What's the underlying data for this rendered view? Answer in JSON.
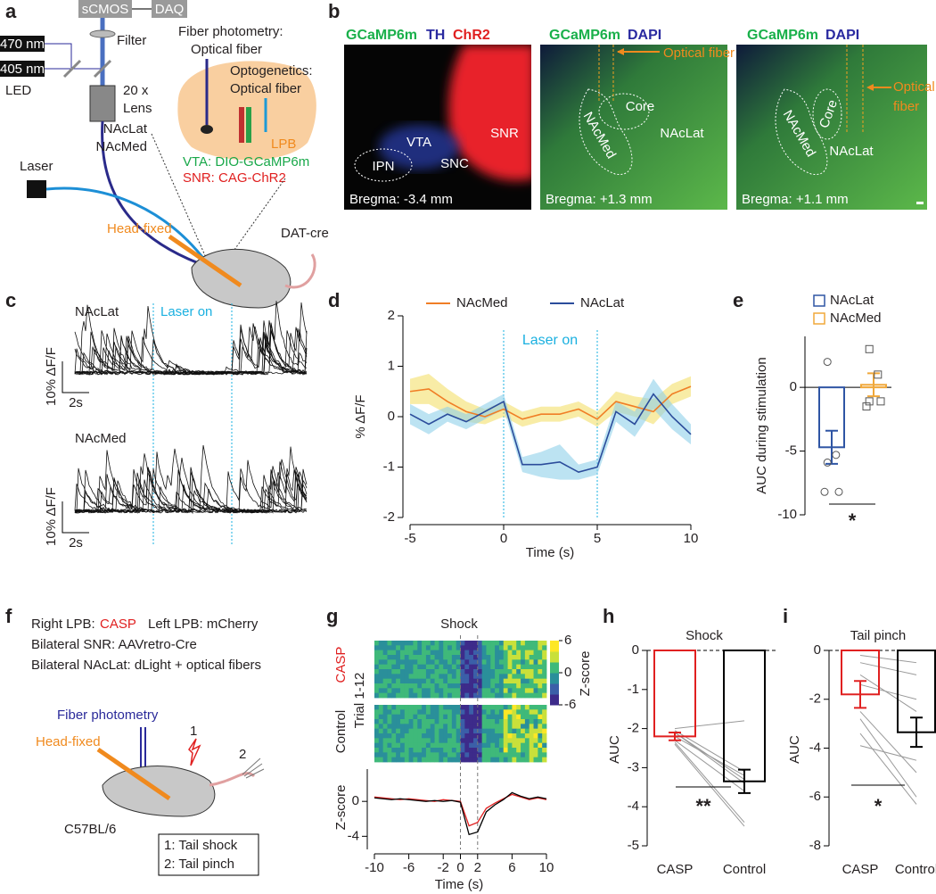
{
  "panel_labels": [
    "a",
    "b",
    "c",
    "d",
    "e",
    "f",
    "g",
    "h",
    "i"
  ],
  "panel_a": {
    "camera": "sCMOS",
    "daq": "DAQ",
    "filter": "Filter",
    "led_470": "470 nm",
    "led_405": "405 nm",
    "led": "LED",
    "lens_mag": "20 x",
    "lens": "Lens",
    "photometry_title": "Fiber photometry:",
    "photometry_fiber": "Optical fiber",
    "optogenetics_title": "Optogenetics:",
    "optogenetics_fiber": "Optical fiber",
    "nac_lat": "NAcLat",
    "nac_med": "NAcMed",
    "lpb": "LPB",
    "vta": "VTA: DIO-GCaMP6m",
    "snr": "SNR: CAG-ChR2",
    "laser": "Laser",
    "head_fixed": "Head-fixed",
    "strain": "DAT-cre"
  },
  "panel_b": {
    "images": [
      {
        "stains": [
          "GCaMP6m",
          "TH",
          "ChR2"
        ],
        "regions": [
          "IPN",
          "VTA",
          "SNC",
          "SNR"
        ],
        "bregma": "Bregma: -3.4 mm"
      },
      {
        "stains": [
          "GCaMP6m",
          "DAPI"
        ],
        "fiber": [
          "Optical fiber"
        ],
        "regions": [
          "Core",
          "NAcMed",
          "NAcLat"
        ],
        "bregma": "Bregma: +1.3 mm"
      },
      {
        "stains": [
          "GCaMP6m",
          "DAPI"
        ],
        "fiber": [
          "Optical",
          "fiber"
        ],
        "regions": [
          "Core",
          "NAcMed",
          "NAcLat"
        ],
        "bregma": "Bregma: +1.1 mm"
      }
    ]
  },
  "panel_c": {
    "laser": "Laser on",
    "rows": [
      {
        "label": "NAcLat",
        "scale_y": "10% ΔF/F",
        "scale_x": "2s"
      },
      {
        "label": "NAcMed",
        "scale_y": "10% ΔF/F",
        "scale_x": "2s"
      }
    ]
  },
  "panel_f": {
    "line1_a": "Right LPB:",
    "line1_casp": "CASP",
    "line1_b": "Left LPB: mCherry",
    "line2": "Bilateral SNR: AAVretro-Cre",
    "line3": "Bilateral NAcLat: dLight + optical fibers",
    "photometry": "Fiber photometry",
    "head_fixed": "Head-fixed",
    "stim_1": "1",
    "stim_2": "2",
    "strain": "C57BL/6",
    "legend": [
      "1: Tail shock",
      "2: Tail pinch"
    ]
  },
  "panel_g": {
    "title": "Shock",
    "rows": [
      "CASP",
      "Control"
    ],
    "trial": "Trial 1-12",
    "colorbar": {
      "label": "Z-score",
      "ticks": [
        6,
        0,
        -6
      ]
    }
  },
  "chart_data": [
    {
      "type": "line",
      "x": [
        -5,
        -4,
        -3,
        -2,
        -1,
        0,
        1,
        2,
        3,
        4,
        5,
        6,
        7,
        8,
        9,
        10
      ],
      "series": [
        {
          "name": "NAcMed",
          "color": "#f07e26",
          "values": [
            0.5,
            0.55,
            0.3,
            0.1,
            0.0,
            0.15,
            -0.05,
            0.05,
            0.05,
            0.15,
            -0.05,
            0.3,
            0.2,
            0.1,
            0.45,
            0.6
          ],
          "error": [
            0.25,
            0.3,
            0.25,
            0.2,
            0.15,
            0.15,
            0.15,
            0.15,
            0.15,
            0.15,
            0.15,
            0.2,
            0.2,
            0.25,
            0.2,
            0.2
          ]
        },
        {
          "name": "NAcLat",
          "color": "#2b4c9b",
          "values": [
            0.05,
            -0.15,
            0.05,
            -0.1,
            0.1,
            0.3,
            -0.95,
            -0.95,
            -0.9,
            -1.1,
            -1.0,
            0.1,
            -0.15,
            0.45,
            0.0,
            -0.35
          ],
          "error": [
            0.2,
            0.2,
            0.15,
            0.15,
            0.15,
            0.15,
            0.15,
            0.25,
            0.35,
            0.15,
            0.15,
            0.2,
            0.25,
            0.3,
            0.25,
            0.2
          ]
        }
      ],
      "xlim": [
        -5,
        10
      ],
      "ylim": [
        -2,
        2
      ],
      "xticks": [
        -5,
        0,
        5,
        10
      ],
      "yticks": [
        -2,
        -1,
        0,
        1,
        2
      ],
      "vlines": [
        0,
        5
      ],
      "xlabel": "Time (s)",
      "ylabel": "% ΔF/F",
      "annotation": "Laser on"
    },
    {
      "type": "bar",
      "categories": [
        "NAcLat",
        "NAcMed"
      ],
      "colors": [
        "#2f55a4",
        "#f0a83a"
      ],
      "values": [
        -4.7,
        0.2
      ],
      "errors": [
        1.3,
        0.9
      ],
      "points": [
        [
          2.0,
          -5.3,
          -5.9,
          -8.2,
          -8.2
        ],
        [
          3.0,
          1.0,
          -1.1,
          -1.1,
          -1.5
        ]
      ],
      "ylim": [
        -10,
        4
      ],
      "yticks": [
        -10,
        -5,
        0
      ],
      "ylabel": "AUC during stimulation",
      "annotation": "*"
    },
    {
      "type": "line",
      "x": [
        -10,
        -9,
        -8,
        -7,
        -6,
        -5,
        -4,
        -3,
        -2,
        -1,
        0,
        1,
        2,
        3,
        4,
        5,
        6,
        7,
        8,
        9,
        10
      ],
      "series": [
        {
          "name": "CASP",
          "color": "#e02020",
          "values": [
            0.5,
            0.4,
            0.3,
            0.2,
            0.3,
            0.2,
            0.1,
            0.0,
            0.2,
            0.1,
            0.0,
            -2.8,
            -2.4,
            -0.8,
            -0.2,
            0.3,
            0.8,
            0.5,
            0.2,
            0.4,
            0.2
          ]
        },
        {
          "name": "Control",
          "color": "#000000",
          "values": [
            0.4,
            0.3,
            0.2,
            0.3,
            0.2,
            0.1,
            0.0,
            0.1,
            0.0,
            0.1,
            -0.1,
            -3.8,
            -3.5,
            -1.2,
            -0.4,
            0.2,
            1.0,
            0.6,
            0.3,
            0.5,
            0.3
          ]
        }
      ],
      "xlim": [
        -10,
        10
      ],
      "ylim": [
        -5.5,
        3.7
      ],
      "xticks": [
        -10,
        -6,
        -2,
        0,
        2,
        6,
        10
      ],
      "yticks": [
        -4,
        0
      ],
      "vlines": [
        0,
        2
      ],
      "xlabel": "Time (s)",
      "ylabel": "Z-score"
    },
    {
      "type": "bar",
      "title": "Shock",
      "categories": [
        "CASP",
        "Control"
      ],
      "colors": [
        "#e02020",
        "#000000"
      ],
      "values": [
        -2.2,
        -3.35
      ],
      "errors": [
        0.1,
        0.3
      ],
      "points": [
        [
          -2.0,
          -2.05,
          -2.1,
          -2.2,
          -2.3,
          -2.35,
          -2.4,
          -2.1
        ],
        [
          -1.8,
          -3.1,
          -3.4,
          -3.2,
          -3.6,
          -4.4,
          -4.5,
          -3.3
        ]
      ],
      "ylim": [
        -5,
        0
      ],
      "yticks": [
        -5,
        -4,
        -3,
        -2,
        -1,
        0
      ],
      "ylabel": "AUC",
      "annotation": "**"
    },
    {
      "type": "bar",
      "title": "Tail pinch",
      "categories": [
        "CASP",
        "Control"
      ],
      "colors": [
        "#e02020",
        "#000000"
      ],
      "values": [
        -1.8,
        -3.35
      ],
      "errors": [
        0.55,
        0.6
      ],
      "points": [
        [
          -0.2,
          -0.5,
          -1.0,
          -1.4,
          -2.5,
          -2.8,
          -3.4,
          -3.9
        ],
        [
          -0.5,
          -1.0,
          -2.5,
          -2.0,
          -5.0,
          -6.0,
          -6.3,
          -4.5
        ]
      ],
      "ylim": [
        -8,
        0
      ],
      "yticks": [
        -8,
        -6,
        -4,
        -2,
        0
      ],
      "ylabel": "AUC",
      "annotation": "*"
    }
  ]
}
